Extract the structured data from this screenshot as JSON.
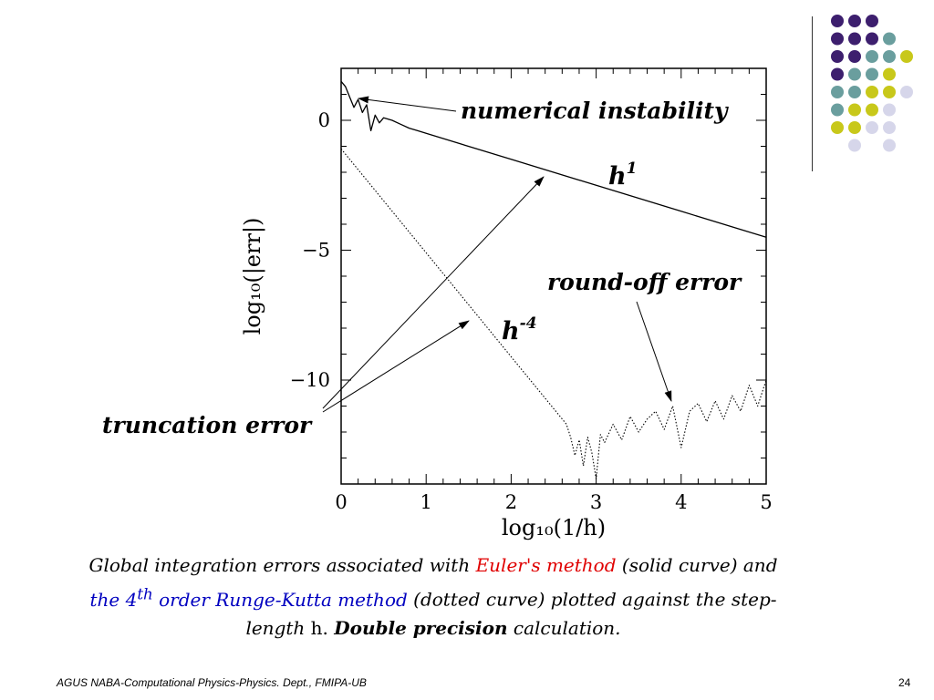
{
  "slide": {
    "footer": "AGUS NABA-Computational Physics-Physics. Dept., FMIPA-UB",
    "page_number": "24"
  },
  "decor": {
    "dot_colors": {
      "purple": "#3d1f6e",
      "teal": "#6a9e9e",
      "yellow": "#c8c81a",
      "lavender": "#d6d6ea"
    }
  },
  "caption": {
    "part1": "Global integration errors associated with ",
    "euler": "Euler's method",
    "part2": " (solid curve) and ",
    "rk_prefix": "the 4",
    "rk_sup": "th",
    "rk_suffix": " order Runge-Kutta method",
    "part3": " (dotted curve) plotted against the step-length ",
    "h": "h.",
    "space": " ",
    "bold": "Double precision",
    "part4": " calculation."
  },
  "chart_data": {
    "type": "line",
    "xlabel": "log₁₀(1/h)",
    "ylabel": "log₁₀(|err|)",
    "xlim": [
      0,
      5
    ],
    "ylim": [
      -14,
      2
    ],
    "x_ticks": [
      "0",
      "1",
      "2",
      "3",
      "4",
      "5"
    ],
    "y_ticks": [
      "0",
      "−5",
      "−10"
    ],
    "x_tick_values": [
      0,
      1,
      2,
      3,
      4,
      5
    ],
    "y_tick_values": [
      0,
      -5,
      -10
    ],
    "series": [
      {
        "style": "solid",
        "x": [
          0,
          0.05,
          0.1,
          0.15,
          0.2,
          0.25,
          0.3,
          0.35,
          0.4,
          0.45,
          0.5,
          0.6,
          0.7,
          0.8,
          0.9,
          1.0,
          2.0,
          3.0,
          4.0,
          5.0
        ],
        "y": [
          1.5,
          1.3,
          0.9,
          0.5,
          0.8,
          0.3,
          0.6,
          -0.4,
          0.2,
          -0.1,
          0.1,
          0.0,
          -0.15,
          -0.3,
          -0.4,
          -0.5,
          -1.5,
          -2.5,
          -3.5,
          -4.5
        ]
      },
      {
        "style": "dotted",
        "x": [
          0,
          1.0,
          2.0,
          2.65,
          2.7,
          2.75,
          2.8,
          2.85,
          2.9,
          2.95,
          3.0,
          3.05,
          3.1,
          3.2,
          3.3,
          3.4,
          3.5,
          3.6,
          3.7,
          3.8,
          3.9,
          4.0,
          4.1,
          4.2,
          4.3,
          4.4,
          4.5,
          4.6,
          4.7,
          4.8,
          4.9,
          5.0
        ],
        "y": [
          -1.1,
          -5.1,
          -9.1,
          -11.7,
          -12.2,
          -12.9,
          -12.3,
          -13.3,
          -12.2,
          -12.8,
          -13.8,
          -12.1,
          -12.4,
          -11.7,
          -12.3,
          -11.4,
          -12.0,
          -11.5,
          -11.2,
          -11.9,
          -11.0,
          -12.6,
          -11.2,
          -10.9,
          -11.6,
          -10.8,
          -11.5,
          -10.6,
          -11.2,
          -10.2,
          -11.0,
          -10.0
        ]
      }
    ],
    "annotations": [
      {
        "text": "numerical instability"
      },
      {
        "text": "h",
        "sup": "1"
      },
      {
        "text": "round-off error"
      },
      {
        "text": "h",
        "sup": "-4"
      },
      {
        "text": "truncation error"
      }
    ]
  }
}
